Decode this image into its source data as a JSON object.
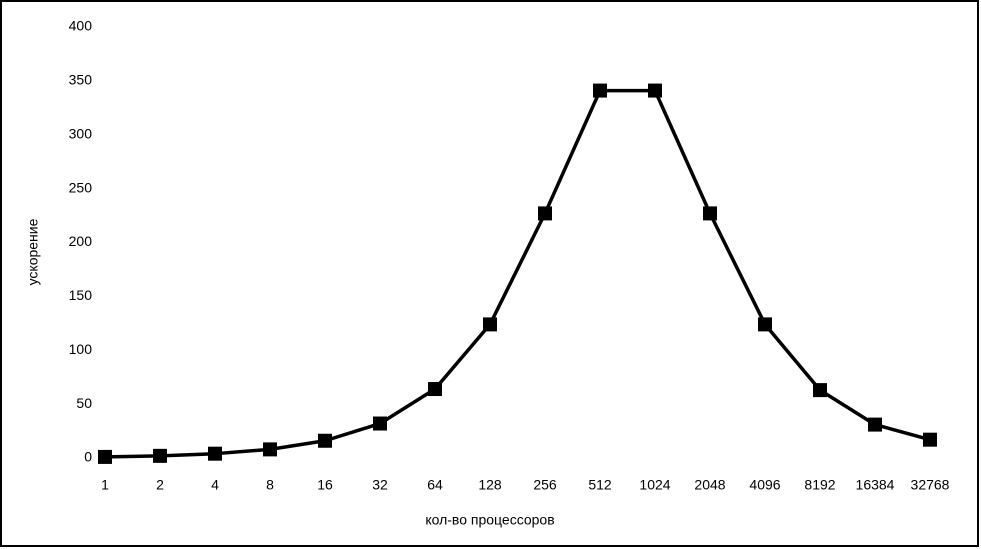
{
  "chart_data": {
    "type": "line",
    "x_label": "кол-во процессоров",
    "y_label": "ускорение",
    "categories": [
      "1",
      "2",
      "4",
      "8",
      "16",
      "32",
      "64",
      "128",
      "256",
      "512",
      "1024",
      "2048",
      "4096",
      "8192",
      "16384",
      "32768"
    ],
    "values": [
      1,
      2,
      4,
      8,
      16,
      32,
      64,
      124,
      227,
      341,
      341,
      227,
      124,
      63,
      31,
      17
    ],
    "color": "#000000",
    "ylim": [
      0,
      400
    ],
    "yticks": [
      0,
      50,
      100,
      150,
      200,
      250,
      300,
      350,
      400
    ],
    "grid": false
  }
}
